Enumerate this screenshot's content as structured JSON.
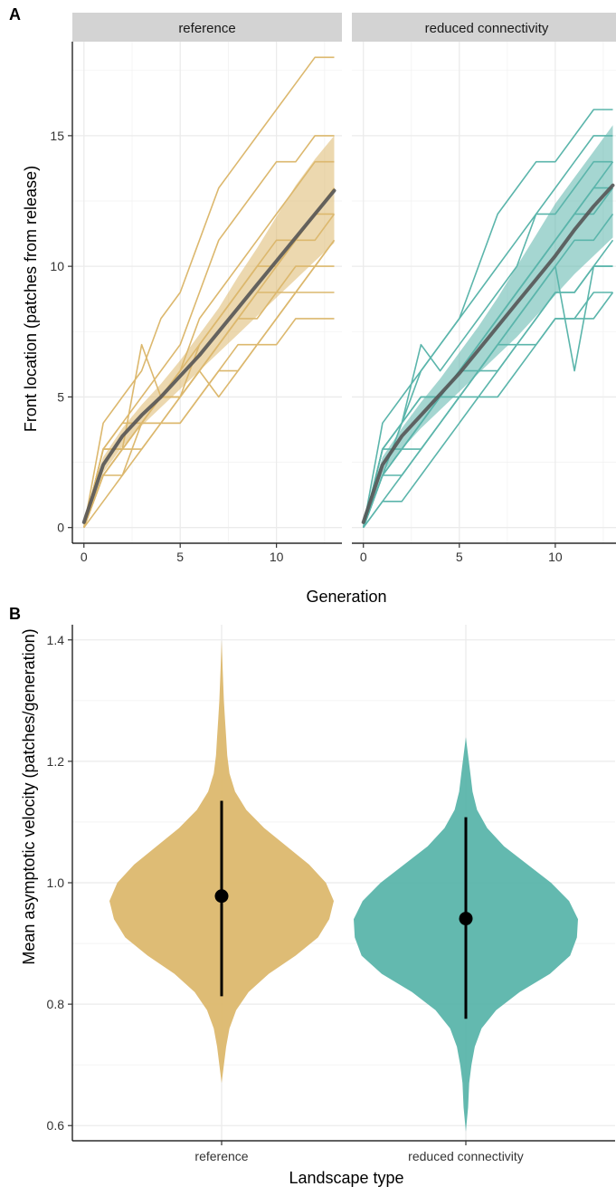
{
  "colors": {
    "reference": "#DCB86E",
    "reduced_connectivity": "#5BB5AB",
    "mean_line": "#555555",
    "strip_bg": "#D3D3D3",
    "grid": "#EBEBEB"
  },
  "chart_data": [
    {
      "id": "A",
      "type": "line",
      "panel_label": "A",
      "xlabel": "Generation",
      "ylabel": "Front location (patches from release)",
      "xlim": [
        -0.6,
        13.4
      ],
      "ylim": [
        -0.6,
        18.6
      ],
      "xticks": [
        0,
        5,
        10
      ],
      "yticks": [
        0,
        5,
        10,
        15
      ],
      "grid": true,
      "facets": [
        {
          "label": "reference",
          "color_key": "reference",
          "ribbon": {
            "x": [
              0,
              1,
              2,
              3,
              4,
              5,
              6,
              7,
              8,
              9,
              10,
              11,
              12,
              13
            ],
            "lower": [
              0,
              2.1,
              3.1,
              3.9,
              4.6,
              5.3,
              6.0,
              6.7,
              7.4,
              8.1,
              8.8,
              9.5,
              10.2,
              10.9
            ],
            "upper": [
              0.4,
              2.7,
              3.8,
              4.7,
              5.5,
              6.4,
              7.4,
              8.4,
              9.6,
              10.7,
              11.9,
              13.1,
              14.1,
              15.0
            ]
          },
          "mean": {
            "x": [
              0,
              1,
              2,
              3,
              4,
              5,
              6,
              7,
              8,
              9,
              10,
              11,
              12,
              13
            ],
            "y": [
              0.2,
              2.4,
              3.5,
              4.3,
              5.0,
              5.8,
              6.6,
              7.5,
              8.4,
              9.3,
              10.2,
              11.1,
              12.0,
              12.9
            ]
          },
          "replicates": [
            [
              0,
              4,
              5,
              6,
              8,
              9,
              11,
              13,
              14,
              15,
              16,
              17,
              18,
              18
            ],
            [
              0,
              3,
              4,
              5,
              6,
              7,
              9,
              11,
              12,
              13,
              14,
              14,
              15,
              15
            ],
            [
              0,
              3,
              3,
              7,
              5,
              6,
              8,
              9,
              10,
              11,
              12,
              13,
              14,
              14
            ],
            [
              0,
              2,
              3,
              4,
              5,
              6,
              7,
              8,
              9,
              10,
              11,
              11,
              12,
              13
            ],
            [
              0,
              3,
              3,
              4,
              4,
              5,
              7,
              8,
              9,
              10,
              10,
              11,
              12,
              12
            ],
            [
              0,
              2,
              3,
              4,
              5,
              5,
              6,
              7,
              8,
              9,
              10,
              11,
              11,
              12
            ],
            [
              0,
              2,
              3,
              4,
              5,
              5,
              6,
              7,
              8,
              9,
              9,
              10,
              10,
              11
            ],
            [
              0,
              3,
              4,
              4,
              5,
              5,
              6,
              5,
              6,
              7,
              8,
              9,
              10,
              11
            ],
            [
              0,
              2,
              3,
              3,
              4,
              4,
              5,
              6,
              7,
              7,
              8,
              9,
              9,
              9
            ],
            [
              0,
              1,
              2,
              3,
              4,
              4,
              5,
              6,
              6,
              7,
              7,
              8,
              8,
              8
            ],
            [
              0,
              2,
              2,
              4,
              4,
              5,
              6,
              7,
              8,
              8,
              9,
              9,
              10,
              10
            ]
          ]
        },
        {
          "label": "reduced connectivity",
          "color_key": "reduced_connectivity",
          "ribbon": {
            "x": [
              0,
              1,
              2,
              3,
              4,
              5,
              6,
              7,
              8,
              9,
              10,
              11,
              12,
              13
            ],
            "lower": [
              0,
              2.1,
              3.0,
              3.8,
              4.5,
              5.2,
              5.9,
              6.6,
              7.3,
              8.1,
              8.9,
              9.7,
              10.4,
              11.1
            ],
            "upper": [
              0.4,
              2.7,
              3.8,
              4.8,
              5.7,
              6.7,
              7.7,
              8.8,
              10.0,
              11.2,
              12.4,
              13.4,
              14.4,
              15.4
            ]
          },
          "mean": {
            "x": [
              0,
              1,
              2,
              3,
              4,
              5,
              6,
              7,
              8,
              9,
              10,
              11,
              12,
              13
            ],
            "y": [
              0.2,
              2.4,
              3.5,
              4.3,
              5.1,
              5.9,
              6.8,
              7.7,
              8.6,
              9.5,
              10.4,
              11.4,
              12.3,
              13.1
            ]
          },
          "replicates": [
            [
              0,
              3,
              4,
              6,
              7,
              8,
              10,
              12,
              13,
              14,
              14,
              15,
              16,
              16
            ],
            [
              0,
              4,
              5,
              6,
              7,
              8,
              9,
              10,
              11,
              12,
              13,
              14,
              15,
              15
            ],
            [
              0,
              3,
              4,
              7,
              6,
              7,
              8,
              9,
              10,
              12,
              12,
              13,
              14,
              14
            ],
            [
              0,
              2,
              3,
              4,
              5,
              6,
              7,
              8,
              9,
              10,
              11,
              12,
              13,
              14
            ],
            [
              0,
              2,
              4,
              5,
              5,
              6,
              7,
              8,
              9,
              10,
              11,
              12,
              13,
              13
            ],
            [
              0,
              3,
              4,
              5,
              5,
              6,
              7,
              8,
              9,
              10,
              11,
              12,
              12,
              13
            ],
            [
              0,
              2,
              3,
              4,
              5,
              6,
              6,
              7,
              8,
              9,
              10,
              11,
              11,
              12
            ],
            [
              0,
              3,
              3,
              4,
              5,
              5,
              6,
              7,
              8,
              9,
              10,
              6,
              10,
              11
            ],
            [
              0,
              1,
              2,
              3,
              4,
              5,
              6,
              7,
              7,
              8,
              9,
              9,
              10,
              10
            ],
            [
              0,
              2,
              2,
              3,
              4,
              5,
              5,
              6,
              7,
              7,
              8,
              8,
              9,
              9
            ],
            [
              0,
              1,
              1,
              2,
              3,
              4,
              5,
              5,
              6,
              7,
              8,
              8,
              8,
              9
            ],
            [
              0,
              2,
              3,
              3,
              4,
              5,
              6,
              6,
              7,
              8,
              9,
              9,
              10,
              10
            ]
          ]
        }
      ]
    },
    {
      "id": "B",
      "type": "violin",
      "panel_label": "B",
      "xlabel": "Landscape type",
      "ylabel": "Mean asymptotic velocity (patches/generation)",
      "ylim": [
        0.575,
        1.425
      ],
      "yticks": [
        0.6,
        0.8,
        1.0,
        1.2,
        1.4
      ],
      "grid": true,
      "categories": [
        "reference",
        "reduced connectivity"
      ],
      "violins": [
        {
          "label": "reference",
          "color_key": "reference",
          "median": 0.978,
          "interval": [
            0.813,
            1.135
          ],
          "density": {
            "y": [
              0.67,
              0.7,
              0.73,
              0.76,
              0.79,
              0.82,
              0.85,
              0.88,
              0.91,
              0.94,
              0.97,
              1.0,
              1.03,
              1.06,
              1.09,
              1.12,
              1.15,
              1.18,
              1.21,
              1.24,
              1.27,
              1.3,
              1.35,
              1.4
            ],
            "width": [
              0.0,
              0.02,
              0.04,
              0.07,
              0.13,
              0.24,
              0.42,
              0.66,
              0.86,
              0.96,
              1.0,
              0.93,
              0.78,
              0.58,
              0.38,
              0.22,
              0.12,
              0.07,
              0.05,
              0.04,
              0.03,
              0.02,
              0.01,
              0.0
            ]
          }
        },
        {
          "label": "reduced connectivity",
          "color_key": "reduced_connectivity",
          "median": 0.941,
          "interval": [
            0.776,
            1.108
          ],
          "density": {
            "y": [
              0.59,
              0.63,
              0.67,
              0.7,
              0.73,
              0.76,
              0.79,
              0.82,
              0.85,
              0.88,
              0.91,
              0.94,
              0.97,
              1.0,
              1.03,
              1.06,
              1.09,
              1.12,
              1.15,
              1.18,
              1.21,
              1.24
            ],
            "width": [
              0.0,
              0.02,
              0.03,
              0.05,
              0.08,
              0.14,
              0.27,
              0.48,
              0.75,
              0.93,
              0.99,
              1.0,
              0.92,
              0.76,
              0.55,
              0.34,
              0.19,
              0.1,
              0.06,
              0.04,
              0.02,
              0.0
            ]
          }
        }
      ]
    }
  ]
}
